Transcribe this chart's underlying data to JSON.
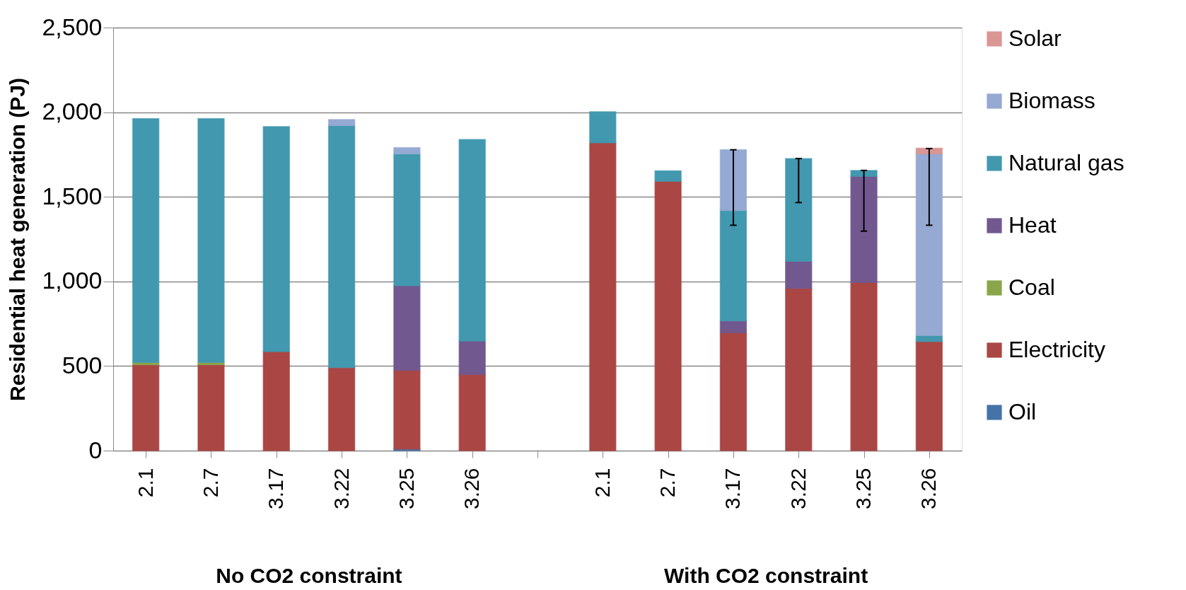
{
  "chart_data": {
    "type": "bar",
    "stacked": true,
    "ylabel": "Residential heat generation (PJ)",
    "categories": [
      "2.1",
      "2.7",
      "3.17",
      "3.22",
      "3.25",
      "3.26",
      null,
      "2.1",
      "2.7",
      "3.17",
      "3.22",
      "3.25",
      "3.26"
    ],
    "series": [
      {
        "name": "Oil",
        "color": "#4573a7",
        "values": [
          null,
          null,
          null,
          null,
          9,
          null,
          null,
          null,
          null,
          null,
          null,
          null,
          null
        ]
      },
      {
        "name": "Electricity",
        "color": "#aa4644",
        "values": [
          508,
          508,
          585,
          491,
          465,
          450,
          null,
          1820,
          1592,
          697,
          959,
          994,
          645
        ]
      },
      {
        "name": "Coal",
        "color": "#8aa64b",
        "values": [
          14,
          14,
          null,
          null,
          null,
          null,
          null,
          null,
          null,
          null,
          null,
          null,
          null
        ]
      },
      {
        "name": "Heat",
        "color": "#71588f",
        "values": [
          null,
          null,
          null,
          null,
          501,
          198,
          null,
          null,
          null,
          70,
          160,
          627,
          null
        ]
      },
      {
        "name": "Natural gas",
        "color": "#4198af",
        "values": [
          1440,
          1440,
          1330,
          1430,
          779,
          1190,
          null,
          183,
          61,
          652,
          607,
          35,
          35
        ],
        "errors": [
          null,
          null,
          null,
          null,
          null,
          null,
          null,
          null,
          null,
          null,
          [
            1466,
            1726
          ],
          [
            1297,
            1656
          ],
          null
        ]
      },
      {
        "name": "Biomass",
        "color": "#95a9d3",
        "values": [
          null,
          null,
          null,
          36,
          36,
          null,
          null,
          null,
          null,
          359,
          null,
          null,
          1074
        ],
        "errors": [
          null,
          null,
          null,
          null,
          null,
          null,
          null,
          null,
          null,
          [
            1332,
            1778
          ],
          null,
          null,
          null
        ]
      },
      {
        "name": "Solar",
        "color": "#d99694",
        "values": [
          null,
          null,
          null,
          null,
          null,
          null,
          null,
          null,
          null,
          null,
          null,
          null,
          33
        ],
        "errors": [
          null,
          null,
          null,
          null,
          null,
          null,
          null,
          null,
          null,
          null,
          null,
          null,
          [
            1332,
            1785
          ]
        ]
      }
    ],
    "ylim": [
      0,
      2500
    ],
    "yticks": [
      {
        "value": 0,
        "label": "0"
      },
      {
        "value": 500,
        "label": "500"
      },
      {
        "value": 1000,
        "label": "1,000"
      },
      {
        "value": 1500,
        "label": "1,500"
      },
      {
        "value": 2000,
        "label": "2,000"
      },
      {
        "value": 2500,
        "label": "2,500"
      }
    ],
    "grid": "y",
    "legend": "right",
    "annotations": [
      "No CO2 constraint",
      "With CO2 constraint"
    ]
  }
}
